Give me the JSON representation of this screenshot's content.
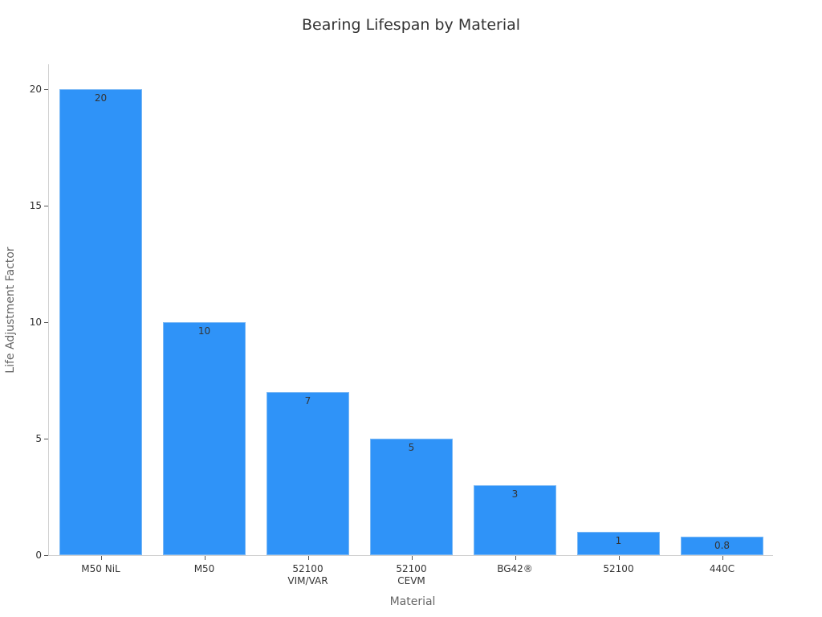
{
  "chart_data": {
    "type": "bar",
    "title": "Bearing Lifespan by Material",
    "xlabel": "Material",
    "ylabel": "Life Adjustment Factor",
    "categories": [
      "M50 NiL",
      "M50",
      "52100 VIM/VAR",
      "52100 CEVM",
      "BG42®",
      "52100",
      "440C"
    ],
    "category_lines": [
      [
        "M50 NiL"
      ],
      [
        "M50"
      ],
      [
        "52100",
        "VIM/VAR"
      ],
      [
        "52100",
        "CEVM"
      ],
      [
        "BG42®"
      ],
      [
        "52100"
      ],
      [
        "440C"
      ]
    ],
    "values": [
      20,
      10,
      7,
      5,
      3,
      1,
      0.8
    ],
    "value_labels": [
      "20",
      "10",
      "7",
      "5",
      "3",
      "1",
      "0.8"
    ],
    "yticks": [
      0,
      5,
      10,
      15,
      20
    ],
    "ylim": [
      0,
      21
    ],
    "grid": false,
    "legend": null,
    "bar_color": "#2f93f8"
  }
}
